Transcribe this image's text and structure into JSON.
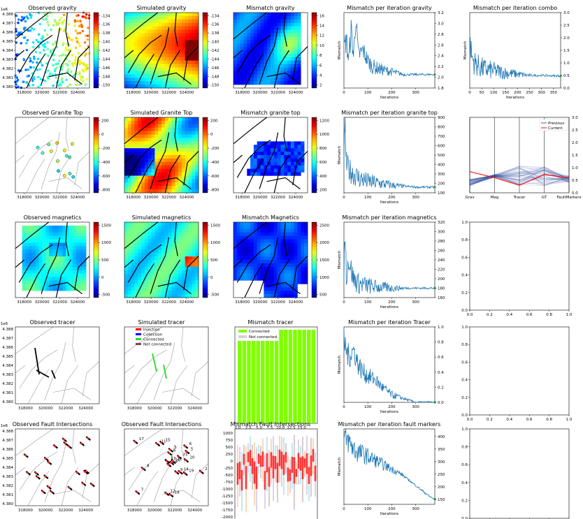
{
  "panels": [
    {
      "id": "p11",
      "title": "Observed gravity",
      "type": "map_scatter",
      "offset": "1e6",
      "cbar": {
        "ticks": [
          "-134",
          "-136",
          "-138",
          "-140",
          "-142",
          "-144",
          "-146",
          "-148",
          "-150"
        ]
      },
      "yticks": [
        "4.388",
        "4.387",
        "4.386",
        "4.385",
        "4.384",
        "4.383",
        "4.382",
        "4.381",
        "4.380"
      ],
      "xticks": [
        "318000",
        "320000",
        "322000",
        "324000"
      ]
    },
    {
      "id": "p12",
      "title": "Simulated gravity",
      "type": "map_grid",
      "cbar": {
        "ticks": [
          "-134",
          "-136",
          "-138",
          "-140",
          "-142",
          "-144",
          "-146",
          "-148",
          "-150"
        ]
      },
      "xticks": [
        "318000",
        "320000",
        "322000",
        "324000"
      ]
    },
    {
      "id": "p13",
      "title": "Mismatch gravity",
      "type": "map_grid",
      "cbar": {
        "ticks": [
          "16",
          "14",
          "12",
          "10",
          "8",
          "6",
          "4",
          "2"
        ]
      },
      "xticks": [
        "318000",
        "320000",
        "322000",
        "324000"
      ]
    },
    {
      "id": "p14",
      "title": "Mismatch per iteration gravity",
      "type": "line",
      "ylabel": "Mismatch",
      "xlabel": "Iterations",
      "xticks": [
        "0",
        "100",
        "200",
        "300"
      ],
      "yticks": [
        "3.2",
        "3.0",
        "2.8",
        "2.6",
        "2.4",
        "2.2",
        "2.0",
        "1.8"
      ]
    },
    {
      "id": "p15",
      "title": "Mismatch per iteration combo",
      "type": "line",
      "ylabel": "Mismatch",
      "xlabel": "Iterations",
      "xticks": [
        "0",
        "50",
        "100",
        "150",
        "200",
        "250",
        "300",
        "350"
      ],
      "yticks": [
        "3.0",
        "2.5",
        "2.0",
        "1.5",
        "1.0",
        "0.5",
        "0.0"
      ]
    },
    {
      "id": "p21",
      "title": "Observed Granite Top",
      "type": "map_scatter",
      "cbar": {
        "ticks": [
          "200",
          "0",
          "-200",
          "-400",
          "-600",
          "-800"
        ]
      },
      "xticks": [
        "318000",
        "320000",
        "322000",
        "324000"
      ]
    },
    {
      "id": "p22",
      "title": "Simulated Granite Top",
      "type": "map_grid",
      "cbar": {
        "ticks": [
          "200",
          "0",
          "-200",
          "-400",
          "-600",
          "-800"
        ]
      },
      "xticks": [
        "318000",
        "320000",
        "322000",
        "324000"
      ]
    },
    {
      "id": "p23",
      "title": "Mismatch granite top",
      "type": "map_grid",
      "cbar": {
        "ticks": [
          "1200",
          "1000",
          "800",
          "600",
          "400",
          "200"
        ]
      },
      "xticks": [
        "318000",
        "320000",
        "322000",
        "324000"
      ]
    },
    {
      "id": "p24",
      "title": "Mismatch per iteration granite top",
      "type": "line",
      "ylabel": "Mismatch",
      "xlabel": "Iterations",
      "xticks": [
        "0",
        "100",
        "200",
        "300"
      ],
      "yticks": [
        "900",
        "800",
        "700",
        "600",
        "500",
        "400",
        "300",
        "200",
        "100"
      ]
    },
    {
      "id": "p25",
      "title": "",
      "type": "parallel",
      "categories": [
        "Grav",
        "Mag",
        "Tracer",
        "GT",
        "FaultMarkers"
      ],
      "yticks": [
        "3.0",
        "2.5",
        "2.0",
        "1.5",
        "1.0",
        "0.5",
        "0.0"
      ],
      "legend": [
        "Previous",
        "Current"
      ]
    },
    {
      "id": "p31",
      "title": "Observed magnetics",
      "type": "map_grid",
      "cbar": {
        "ticks": [
          "1500",
          "1000",
          "500",
          "0",
          "-500"
        ]
      },
      "xticks": [
        "318000",
        "320000",
        "322000",
        "324000"
      ]
    },
    {
      "id": "p32",
      "title": "Simulated magnetics",
      "type": "map_grid",
      "cbar": {
        "ticks": [
          "1500",
          "1000",
          "500",
          "0",
          "-500"
        ]
      },
      "xticks": [
        "318000",
        "320000",
        "322000",
        "324000"
      ]
    },
    {
      "id": "p33",
      "title": "Mismatch Magnetics",
      "type": "map_grid",
      "cbar": {
        "ticks": [
          "2500",
          "2000",
          "1500",
          "1000",
          "500"
        ]
      },
      "xticks": [
        "318000",
        "320000",
        "322000",
        "324000"
      ]
    },
    {
      "id": "p34",
      "title": "Mismatch per iteration magnetics",
      "type": "line",
      "ylabel": "Mismatch",
      "xlabel": "Iterations",
      "xticks": [
        "0",
        "100",
        "200",
        "300"
      ],
      "yticks": [
        "320",
        "300",
        "280",
        "260",
        "240",
        "220",
        "200",
        "180",
        "160"
      ]
    },
    {
      "id": "p35",
      "title": "",
      "type": "empty",
      "xticks": [
        "0.0",
        "0.2",
        "0.4",
        "0.6",
        "0.8",
        "1.0"
      ],
      "yticks": [
        "1.0",
        "0.8",
        "0.6",
        "0.4",
        "0.2",
        "0.0"
      ]
    },
    {
      "id": "p41",
      "title": "Observed tracer",
      "type": "map_lines",
      "offset": "1e6",
      "yticks": [
        "4.388",
        "4.387",
        "4.386",
        "4.385",
        "4.384",
        "4.383",
        "4.382",
        "4.381",
        "4.380"
      ],
      "xticks": [
        "318000",
        "320000",
        "322000",
        "324000"
      ]
    },
    {
      "id": "p42",
      "title": "Simulated tracer",
      "type": "map_lines",
      "legend": [
        "Injection",
        "Collection",
        "Connected",
        "Not connected"
      ],
      "xticks": [
        "318000",
        "320000",
        "322000",
        "324000"
      ]
    },
    {
      "id": "p43",
      "title": "Mismatch tracer",
      "type": "bar",
      "legend": [
        "Connected",
        "Not connected"
      ],
      "xticks": [
        "0.0",
        "2.5",
        "5.0",
        "7.5",
        "10.0",
        "12.5",
        "15.0"
      ]
    },
    {
      "id": "p44",
      "title": "Mismatch per iteration Tracer",
      "type": "line",
      "ylabel": "Mismatch",
      "xlabel": "Iterations",
      "xticks": [
        "0",
        "100",
        "200",
        "300"
      ],
      "yticks": [
        "1.0",
        "0.8",
        "0.6",
        "0.4",
        "0.2",
        "0.0"
      ]
    },
    {
      "id": "p45",
      "title": "",
      "type": "empty",
      "xticks": [
        "0.0",
        "0.2",
        "0.4",
        "0.6",
        "0.8",
        "1.0"
      ],
      "yticks": [
        "1.0",
        "0.8",
        "0.6",
        "0.4",
        "0.2",
        "0.0"
      ]
    },
    {
      "id": "p51",
      "title": "Observed Fault Intersections",
      "type": "map_lines",
      "offset": "1e6",
      "yticks": [
        "4.388",
        "4.387",
        "4.386",
        "4.385",
        "4.384",
        "4.383",
        "4.382",
        "4.381",
        "4.380"
      ],
      "xticks": [
        "318000",
        "320000",
        "322000",
        "324000"
      ]
    },
    {
      "id": "p52",
      "title": "Observed Fault Intersections",
      "type": "map_lines",
      "xticks": [
        "318000",
        "320000",
        "322000",
        "324000"
      ]
    },
    {
      "id": "p53",
      "title": "Mismatch Fault Intersections",
      "type": "box",
      "xticks": [
        "0",
        "10",
        "20",
        "30"
      ],
      "yticks": [
        "1000",
        "750",
        "500",
        "250",
        "0",
        "-250",
        "-500",
        "-750",
        "-1000",
        "-1250",
        "-1500",
        "-1750",
        "-2000"
      ]
    },
    {
      "id": "p54",
      "title": "Mismatch per iteration fault markers",
      "type": "line",
      "ylabel": "Mismatch",
      "xlabel": "Iterations",
      "xticks": [
        "0",
        "100",
        "200",
        "300"
      ],
      "yticks": [
        "400",
        "350",
        "300",
        "250",
        "200",
        "150"
      ]
    },
    {
      "id": "p55",
      "title": "",
      "type": "empty",
      "xticks": [
        "0.0",
        "0.2",
        "0.4",
        "0.6",
        "0.8",
        "1.0"
      ],
      "yticks": [
        "1.0",
        "0.8",
        "0.6",
        "0.4",
        "0.2",
        "0.0"
      ]
    }
  ],
  "chart_data": [
    {
      "type": "line",
      "title": "Mismatch per iteration gravity",
      "xlabel": "Iterations",
      "ylabel": "Mismatch",
      "xlim": [
        0,
        380
      ],
      "ylim": [
        1.8,
        3.2
      ],
      "series": [
        {
          "x": [
            0,
            10,
            20,
            30,
            40,
            50,
            60,
            80,
            100,
            120,
            150,
            200,
            250,
            300,
            380
          ],
          "values": [
            2.5,
            2.7,
            2.3,
            2.9,
            2.4,
            3.1,
            2.4,
            2.5,
            2.3,
            2.2,
            2.15,
            2.1,
            2.05,
            2.05,
            2.05
          ]
        }
      ]
    },
    {
      "type": "line",
      "title": "Mismatch per iteration combo",
      "xlabel": "Iterations",
      "ylabel": "Mismatch",
      "xlim": [
        0,
        380
      ],
      "ylim": [
        0,
        3.0
      ],
      "series": [
        {
          "x": [
            0,
            10,
            20,
            40,
            60,
            100,
            150,
            200,
            250,
            300,
            380
          ],
          "values": [
            1.8,
            1.2,
            1.0,
            0.85,
            0.75,
            0.7,
            0.6,
            0.55,
            0.5,
            0.5,
            0.48
          ]
        }
      ]
    },
    {
      "type": "line",
      "title": "Mismatch per iteration granite top",
      "xlabel": "Iterations",
      "ylabel": "Mismatch",
      "xlim": [
        0,
        380
      ],
      "ylim": [
        100,
        900
      ],
      "series": [
        {
          "x": [
            0,
            5,
            10,
            20,
            40,
            60,
            100,
            150,
            200,
            250,
            300,
            380
          ],
          "values": [
            500,
            800,
            400,
            350,
            300,
            260,
            220,
            200,
            180,
            170,
            160,
            160
          ]
        }
      ]
    },
    {
      "type": "line",
      "title": "Mismatch per iteration magnetics",
      "xlabel": "Iterations",
      "ylabel": "Mismatch",
      "xlim": [
        0,
        380
      ],
      "ylim": [
        160,
        320
      ],
      "series": [
        {
          "x": [
            0,
            5,
            10,
            20,
            40,
            60,
            100,
            150,
            200,
            250,
            300,
            380
          ],
          "values": [
            220,
            300,
            210,
            240,
            200,
            190,
            185,
            182,
            180,
            180,
            180,
            180
          ]
        }
      ]
    },
    {
      "type": "line",
      "title": "Mismatch per iteration Tracer",
      "xlabel": "Iterations",
      "ylabel": "Mismatch",
      "xlim": [
        0,
        380
      ],
      "ylim": [
        0,
        1.0
      ],
      "series": [
        {
          "x": [
            0,
            20,
            40,
            60,
            80,
            100,
            130,
            160,
            200,
            250,
            300,
            380
          ],
          "values": [
            0.8,
            0.6,
            0.7,
            0.5,
            0.4,
            0.35,
            0.3,
            0.2,
            0.1,
            0.05,
            0.0,
            0.0
          ]
        }
      ]
    },
    {
      "type": "line",
      "title": "Mismatch per iteration fault markers",
      "xlabel": "Iterations",
      "ylabel": "Mismatch",
      "xlim": [
        0,
        380
      ],
      "ylim": [
        130,
        430
      ],
      "series": [
        {
          "x": [
            0,
            20,
            50,
            80,
            120,
            160,
            200,
            240,
            280,
            320,
            360,
            380
          ],
          "values": [
            390,
            380,
            340,
            330,
            310,
            290,
            270,
            250,
            220,
            190,
            160,
            150
          ]
        }
      ]
    }
  ]
}
